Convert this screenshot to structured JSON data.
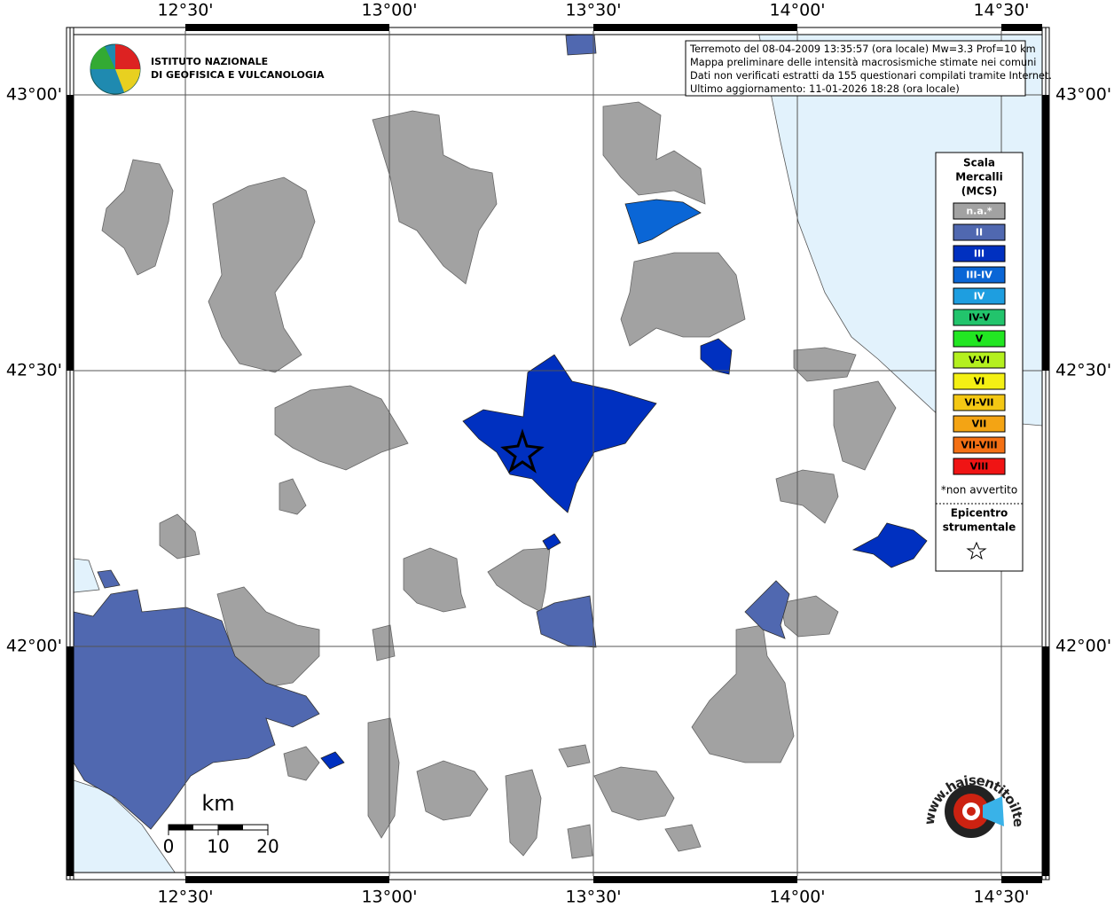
{
  "map": {
    "lon_ticks": [
      {
        "value": 12.5,
        "label": "12°30'"
      },
      {
        "value": 13.0,
        "label": "13°00'"
      },
      {
        "value": 13.5,
        "label": "13°30'"
      },
      {
        "value": 14.0,
        "label": "14°00'"
      },
      {
        "value": 14.5,
        "label": "14°30'"
      }
    ],
    "lat_ticks": [
      {
        "value": 43.0,
        "label": "43°00'"
      },
      {
        "value": 42.5,
        "label": "42°30'"
      },
      {
        "value": 42.0,
        "label": "42°00'"
      }
    ],
    "logo": [
      "ISTITUTO NAZIONALE",
      "DI GEOFISICA E VULCANOLOGIA"
    ],
    "info": [
      "Terremoto del 08-04-2009 13:35:57 (ora locale) Mw=3.3 Prof=10 km",
      "Mappa preliminare delle intensità macrosismiche stimate nei comuni",
      "Dati non verificati estratti da 155 questionari compilati tramite Internet.",
      "Ultimo aggiornamento: 11-01-2026 18:28 (ora locale)"
    ],
    "legend": {
      "title": [
        "Scala",
        "Mercalli",
        "(MCS)"
      ],
      "entries": [
        {
          "label": "n.a.*",
          "color": "#a2a2a2",
          "label_color": "#ffffff"
        },
        {
          "label": "II",
          "color": "#5068b0",
          "label_color": "#ffffff"
        },
        {
          "label": "III",
          "color": "#0030c0",
          "label_color": "#ffffff"
        },
        {
          "label": "III-IV",
          "color": "#0a66d6",
          "label_color": "#ffffff"
        },
        {
          "label": "IV",
          "color": "#1e9ee0",
          "label_color": "#ffffff"
        },
        {
          "label": "IV-V",
          "color": "#22c46c",
          "label_color": "#000000"
        },
        {
          "label": "V",
          "color": "#22e622",
          "label_color": "#000000"
        },
        {
          "label": "V-VI",
          "color": "#b4f01e",
          "label_color": "#000000"
        },
        {
          "label": "VI",
          "color": "#f4f014",
          "label_color": "#000000"
        },
        {
          "label": "VI-VII",
          "color": "#f4c814",
          "label_color": "#000000"
        },
        {
          "label": "VII",
          "color": "#f4a414",
          "label_color": "#000000"
        },
        {
          "label": "VII-VIII",
          "color": "#f47014",
          "label_color": "#000000"
        },
        {
          "label": "VIII",
          "color": "#f01414",
          "label_color": "#000000"
        }
      ],
      "note": "*non avvertito",
      "epicentre": [
        "Epicentro",
        "strumentale"
      ]
    },
    "scale_bar": {
      "unit": "km",
      "ticks": [
        0,
        10,
        20
      ]
    },
    "site": "www.haisentitoilterremoto.it"
  }
}
